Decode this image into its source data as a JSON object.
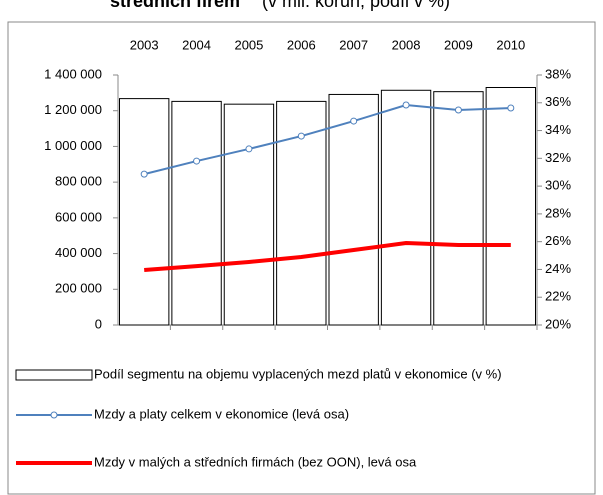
{
  "chart_data": {
    "type": "combo",
    "title": "středních firem",
    "subtitle": "(v mil. korun, podíl v %)",
    "categories": [
      "2003",
      "2004",
      "2005",
      "2006",
      "2007",
      "2008",
      "2009",
      "2010"
    ],
    "ylim": [
      0,
      1400000
    ],
    "yticks": [
      0,
      {
        "value": 200000,
        "label": "200 000"
      },
      {
        "value": 400000,
        "label": "400 000"
      },
      {
        "value": 600000,
        "label": "600 000"
      },
      {
        "value": 800000,
        "label": "800 000"
      },
      {
        "value": 1000000,
        "label": "1 000 000"
      },
      {
        "value": 1200000,
        "label": "1 200 000"
      },
      {
        "value": 1400000,
        "label": "1 400 000"
      }
    ],
    "y2lim": [
      20,
      38
    ],
    "y2ticks": [
      {
        "value": 20,
        "label": "20%"
      },
      {
        "value": 22,
        "label": "22%"
      },
      {
        "value": 24,
        "label": "24%"
      },
      {
        "value": 26,
        "label": "26%"
      },
      {
        "value": 28,
        "label": "28%"
      },
      {
        "value": 30,
        "label": "30%"
      },
      {
        "value": 32,
        "label": "32%"
      },
      {
        "value": 34,
        "label": "34%"
      },
      {
        "value": 36,
        "label": "36%"
      },
      {
        "value": 38,
        "label": "38%"
      }
    ],
    "grid": false,
    "series": [
      {
        "name": "Podíl segmentu na objemu vyplacených mezd  platů v ekonomice (v %)",
        "type": "bar",
        "axis": "y2",
        "color": "#ffffff",
        "values": [
          36.3,
          36.1,
          35.9,
          36.1,
          36.6,
          36.9,
          36.8,
          37.1
        ]
      },
      {
        "name": "Mzdy a platy celkem v ekonomice (levá osa)",
        "type": "line",
        "color": "#4f81bd",
        "values": [
          845000,
          918000,
          986000,
          1058000,
          1142000,
          1232000,
          1204000,
          1215000
        ]
      },
      {
        "name": "Mzdy v malých a středních firmách (bez OON), levá osa",
        "type": "line",
        "color": "#ff0000",
        "values": [
          308000,
          330000,
          353000,
          381000,
          420000,
          459000,
          448000,
          448000
        ]
      }
    ]
  }
}
